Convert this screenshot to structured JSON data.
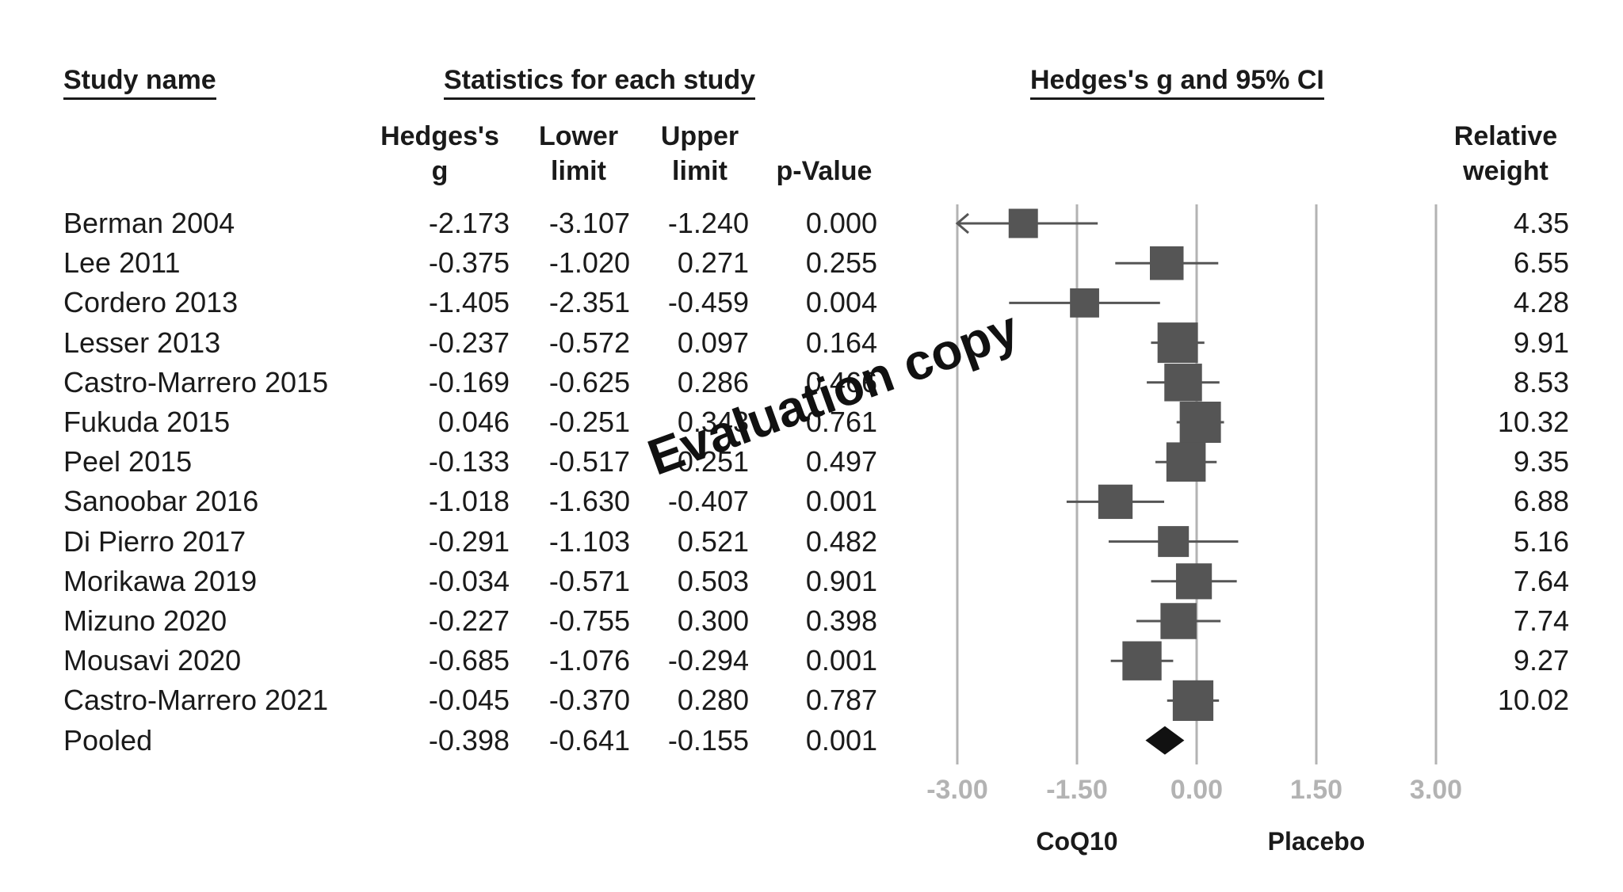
{
  "headers": {
    "study_name": "Study name",
    "statistics": "Statistics for each study",
    "plot_title": "Hedges's g and 95% CI",
    "col_g_1": "Hedges's",
    "col_g_2": "g",
    "col_lower_1": "Lower",
    "col_lower_2": "limit",
    "col_upper_1": "Upper",
    "col_upper_2": "limit",
    "col_p": "p-Value",
    "col_weight_1": "Relative",
    "col_weight_2": "weight"
  },
  "watermark": "Evaluation copy",
  "chart_data": {
    "type": "forest",
    "xlim": [
      -3.0,
      3.0
    ],
    "x_ticks": [
      "-3.00",
      "-1.50",
      "0.00",
      "1.50",
      "3.00"
    ],
    "x_tick_values": [
      -3.0,
      -1.5,
      0.0,
      1.5,
      3.0
    ],
    "grid": true,
    "favours_left": "CoQ10",
    "favours_right": "Placebo",
    "studies": [
      {
        "name": "Berman 2004",
        "g": "-2.173",
        "lower": "-3.107",
        "upper": "-1.240",
        "p": "0.000",
        "weight": "4.35"
      },
      {
        "name": "Lee 2011",
        "g": "-0.375",
        "lower": "-1.020",
        "upper": "0.271",
        "p": "0.255",
        "weight": "6.55"
      },
      {
        "name": "Cordero 2013",
        "g": "-1.405",
        "lower": "-2.351",
        "upper": "-0.459",
        "p": "0.004",
        "weight": "4.28"
      },
      {
        "name": "Lesser 2013",
        "g": "-0.237",
        "lower": "-0.572",
        "upper": "0.097",
        "p": "0.164",
        "weight": "9.91"
      },
      {
        "name": "Castro-Marrero 2015",
        "g": "-0.169",
        "lower": "-0.625",
        "upper": "0.286",
        "p": "0.466",
        "weight": "8.53"
      },
      {
        "name": "Fukuda 2015",
        "g": "0.046",
        "lower": "-0.251",
        "upper": "0.343",
        "p": "0.761",
        "weight": "10.32"
      },
      {
        "name": "Peel 2015",
        "g": "-0.133",
        "lower": "-0.517",
        "upper": "0.251",
        "p": "0.497",
        "weight": "9.35"
      },
      {
        "name": "Sanoobar 2016",
        "g": "-1.018",
        "lower": "-1.630",
        "upper": "-0.407",
        "p": "0.001",
        "weight": "6.88"
      },
      {
        "name": "Di Pierro 2017",
        "g": "-0.291",
        "lower": "-1.103",
        "upper": "0.521",
        "p": "0.482",
        "weight": "5.16"
      },
      {
        "name": "Morikawa 2019",
        "g": "-0.034",
        "lower": "-0.571",
        "upper": "0.503",
        "p": "0.901",
        "weight": "7.64"
      },
      {
        "name": "Mizuno 2020",
        "g": "-0.227",
        "lower": "-0.755",
        "upper": "0.300",
        "p": "0.398",
        "weight": "7.74"
      },
      {
        "name": "Mousavi 2020",
        "g": "-0.685",
        "lower": "-1.076",
        "upper": "-0.294",
        "p": "0.001",
        "weight": "9.27"
      },
      {
        "name": "Castro-Marrero 2021",
        "g": "-0.045",
        "lower": "-0.370",
        "upper": "0.280",
        "p": "0.787",
        "weight": "10.02"
      }
    ],
    "pooled": {
      "name": "Pooled",
      "g": "-0.398",
      "lower": "-0.641",
      "upper": "-0.155",
      "p": "0.001"
    }
  },
  "colors": {
    "marker": "#555555",
    "pooled": "#111111",
    "grid": "#b3b3b3",
    "tick_text": "#b3b3b3"
  }
}
